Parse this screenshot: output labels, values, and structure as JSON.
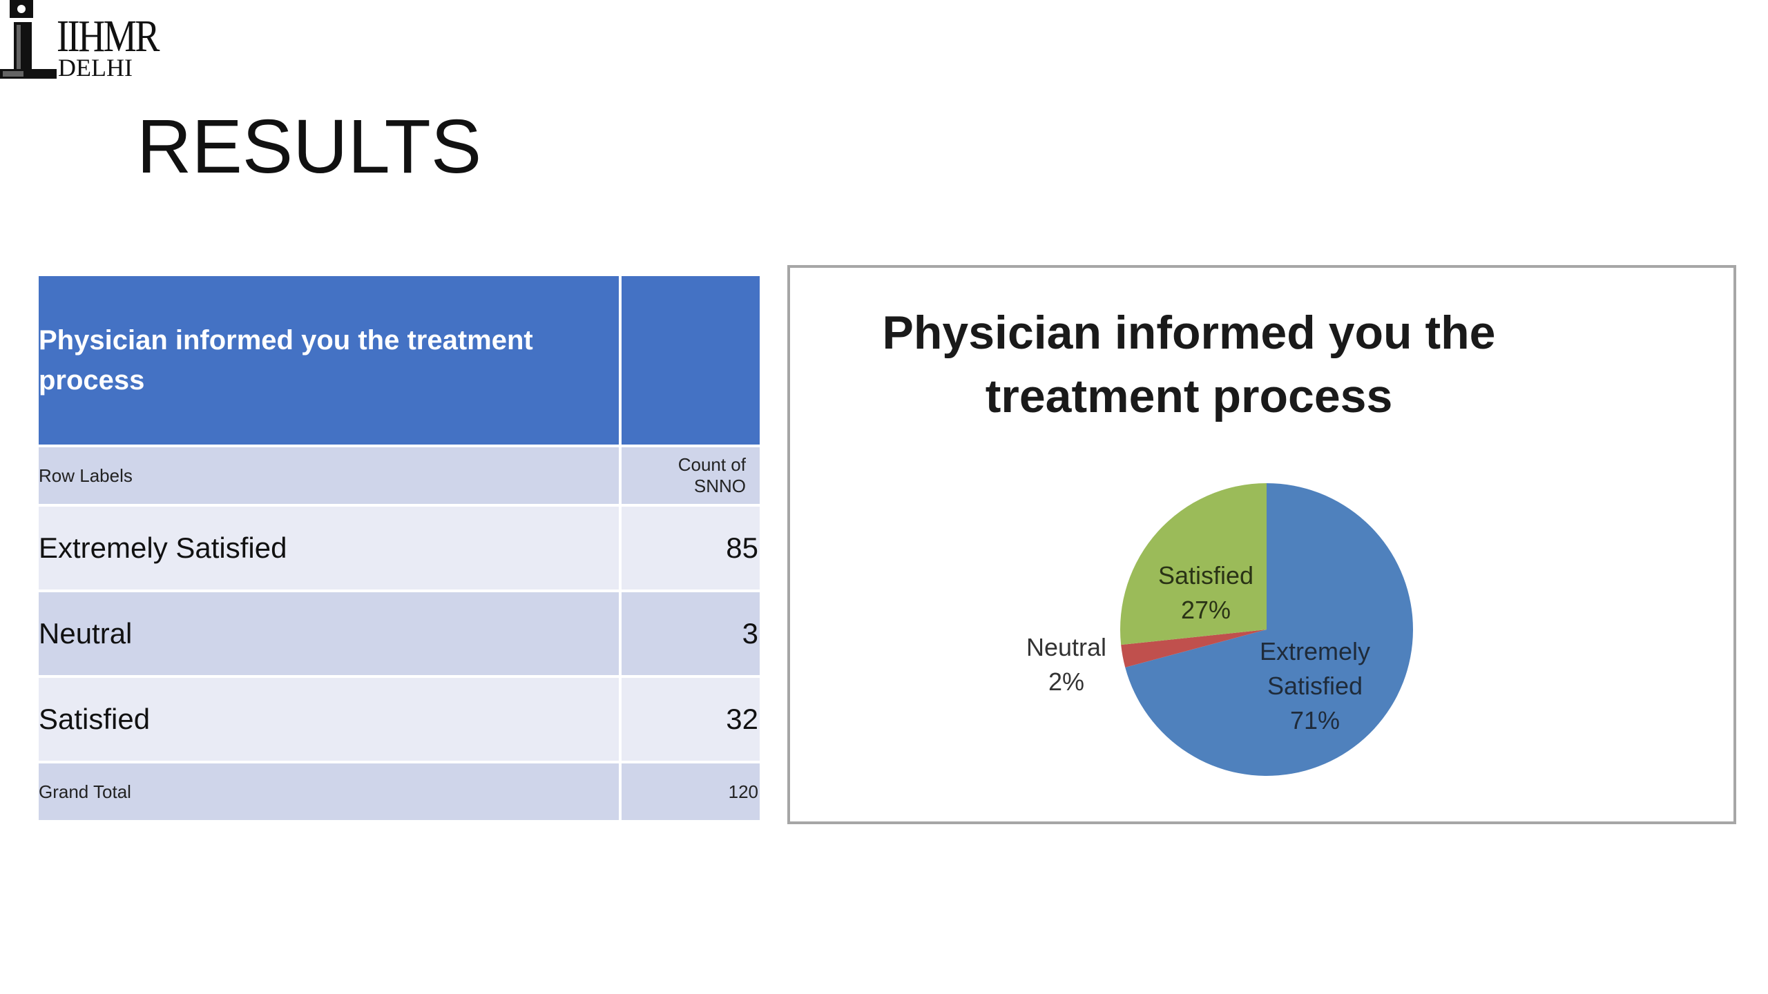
{
  "logo": {
    "name": "IIHMR DELHI logo",
    "text_top": "IIHMR",
    "text_bottom": "DELHI"
  },
  "slide": {
    "title": "RESULTS"
  },
  "table": {
    "header": "Physician informed you the treatment process",
    "row_labels": "Row Labels",
    "count_label": "Count of SNNO",
    "rows": [
      {
        "label": "Extremely Satisfied",
        "value": "85"
      },
      {
        "label": "Neutral",
        "value": "3"
      },
      {
        "label": "Satisfied",
        "value": "32"
      }
    ],
    "total_label": "Grand Total",
    "total_value": "120"
  },
  "colors": {
    "table_header": "#4472c4",
    "table_band_dark": "#cfd5ea",
    "table_band_light": "#e9ebf5",
    "slice_extremely_satisfied": "#4f81bd",
    "slice_neutral": "#c0504d",
    "slice_satisfied": "#9bbb59"
  },
  "chart_data": {
    "type": "pie",
    "title_lines": [
      "Physician informed you the",
      "treatment process"
    ],
    "categories": [
      "Extremely Satisfied",
      "Neutral",
      "Satisfied"
    ],
    "values": [
      85,
      3,
      32
    ],
    "percent_labels": [
      "71%",
      "2%",
      "27%"
    ],
    "label_lines": [
      [
        "Extremely",
        "Satisfied",
        "71%"
      ],
      [
        "Neutral",
        "2%"
      ],
      [
        "Satisfied",
        "27%"
      ]
    ],
    "colors": [
      "#4f81bd",
      "#c0504d",
      "#9bbb59"
    ],
    "start_angle_deg": 0,
    "direction": "clockwise",
    "legend": "none"
  }
}
